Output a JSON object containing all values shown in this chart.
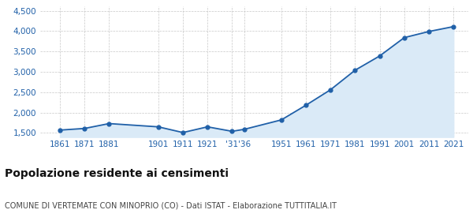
{
  "years": [
    1861,
    1871,
    1881,
    1901,
    1911,
    1921,
    1931,
    1936,
    1951,
    1961,
    1971,
    1981,
    1991,
    2001,
    2011,
    2021
  ],
  "population": [
    1570,
    1610,
    1730,
    1650,
    1510,
    1650,
    1540,
    1590,
    1820,
    2180,
    2560,
    3040,
    3390,
    3840,
    3990,
    4110
  ],
  "tick_positions": [
    1861,
    1871,
    1881,
    1901,
    1911,
    1921,
    1931,
    1936,
    1951,
    1961,
    1971,
    1981,
    1991,
    2001,
    2011,
    2021
  ],
  "tick_labels": [
    "1861",
    "1871",
    "1881",
    "1901",
    "1911",
    "1921",
    "'31",
    "'36",
    "1951",
    "1961",
    "1971",
    "1981",
    "1991",
    "2001",
    "2011",
    "2021"
  ],
  "ylim": [
    1400,
    4600
  ],
  "yticks": [
    1500,
    2000,
    2500,
    3000,
    3500,
    4000,
    4500
  ],
  "xlim": [
    1853,
    2027
  ],
  "line_color": "#2060a8",
  "fill_color": "#daeaf7",
  "marker_color": "#2060a8",
  "grid_color": "#c8c8c8",
  "background_color": "#ffffff",
  "title": "Popolazione residente ai censimenti",
  "subtitle": "COMUNE DI VERTEMATE CON MINOPRIO (CO) - Dati ISTAT - Elaborazione TUTTITALIA.IT",
  "title_fontsize": 10,
  "subtitle_fontsize": 7,
  "tick_label_color": "#2060a8",
  "tick_fontsize": 7.5,
  "ytick_fontsize": 7.5
}
